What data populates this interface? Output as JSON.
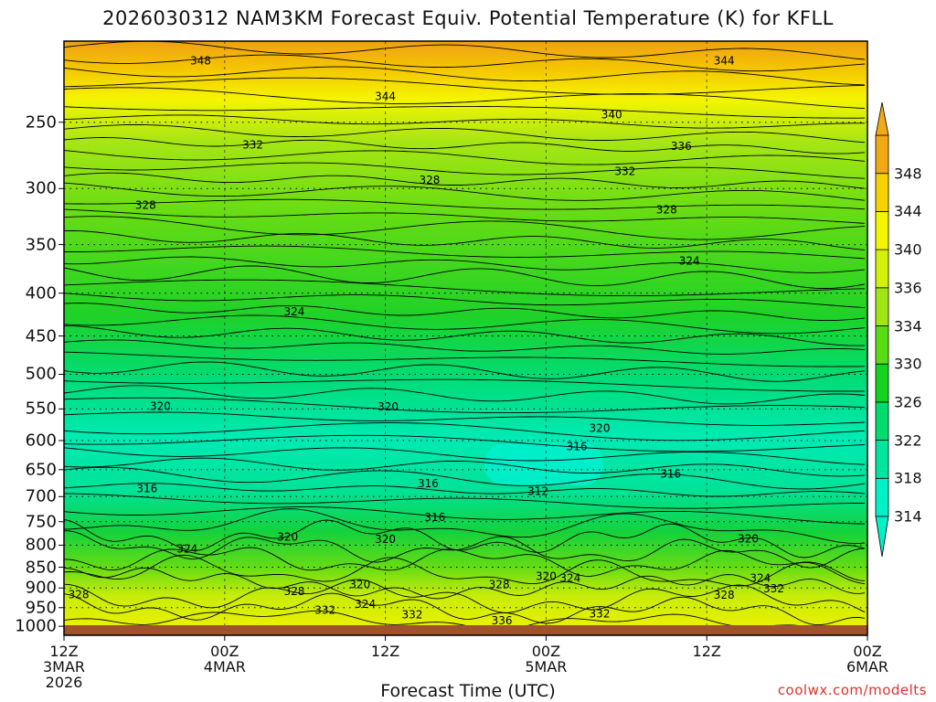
{
  "header": {
    "title": "2026030312 NAM3KM Forecast Equiv. Potential Temperature (K) for KFLL"
  },
  "footer": {
    "credit": "coolwx.com/modelts"
  },
  "chart_data": {
    "type": "heatmap",
    "title": "2026030312 NAM3KM Forecast Equiv. Potential Temperature (K) for KFLL",
    "xlabel": "Forecast Time (UTC)",
    "ylabel": "",
    "y_axis": {
      "ticks": [
        250,
        300,
        350,
        400,
        450,
        500,
        550,
        600,
        650,
        700,
        750,
        800,
        850,
        900,
        950,
        1000
      ],
      "scale": "log-pressure",
      "range": [
        1025,
        200
      ]
    },
    "x_axis": {
      "range_hours": [
        0,
        60
      ],
      "ticks": [
        {
          "hour": 0,
          "lines": [
            "12Z",
            "3MAR",
            "2026"
          ]
        },
        {
          "hour": 12,
          "lines": [
            "00Z",
            "4MAR"
          ]
        },
        {
          "hour": 24,
          "lines": [
            "12Z"
          ]
        },
        {
          "hour": 36,
          "lines": [
            "00Z",
            "5MAR"
          ]
        },
        {
          "hour": 48,
          "lines": [
            "12Z"
          ]
        },
        {
          "hour": 60,
          "lines": [
            "00Z",
            "6MAR"
          ]
        }
      ]
    },
    "colorbar": {
      "levels": [
        314,
        318,
        322,
        326,
        330,
        334,
        336,
        340,
        344,
        348
      ],
      "colors": [
        "#00f0c8",
        "#00e6a0",
        "#00dc6e",
        "#14d21e",
        "#5adc14",
        "#a0e614",
        "#d2f00a",
        "#f5f500",
        "#f5d200",
        "#f0aa14"
      ]
    },
    "contour_labels": [
      {
        "v": 348,
        "h": 10.2,
        "p": 211
      },
      {
        "v": 344,
        "h": 49.3,
        "p": 211
      },
      {
        "v": 344,
        "h": 24.0,
        "p": 233
      },
      {
        "v": 340,
        "h": 40.9,
        "p": 245
      },
      {
        "v": 336,
        "h": 46.1,
        "p": 267
      },
      {
        "v": 332,
        "h": 14.1,
        "p": 266
      },
      {
        "v": 332,
        "h": 41.9,
        "p": 286
      },
      {
        "v": 328,
        "h": 27.3,
        "p": 293
      },
      {
        "v": 328,
        "h": 6.1,
        "p": 314
      },
      {
        "v": 328,
        "h": 45.0,
        "p": 318
      },
      {
        "v": 324,
        "h": 46.7,
        "p": 366
      },
      {
        "v": 324,
        "h": 17.2,
        "p": 421
      },
      {
        "v": 320,
        "h": 7.2,
        "p": 546
      },
      {
        "v": 320,
        "h": 24.2,
        "p": 547
      },
      {
        "v": 320,
        "h": 40.0,
        "p": 580
      },
      {
        "v": 316,
        "h": 38.3,
        "p": 610
      },
      {
        "v": 316,
        "h": 45.3,
        "p": 658
      },
      {
        "v": 316,
        "h": 27.2,
        "p": 675
      },
      {
        "v": 316,
        "h": 6.2,
        "p": 685
      },
      {
        "v": 312,
        "h": 35.4,
        "p": 690
      },
      {
        "v": 316,
        "h": 27.7,
        "p": 741
      },
      {
        "v": 320,
        "h": 16.7,
        "p": 782
      },
      {
        "v": 320,
        "h": 24.0,
        "p": 787
      },
      {
        "v": 324,
        "h": 9.2,
        "p": 808
      },
      {
        "v": 320,
        "h": 51.1,
        "p": 786
      },
      {
        "v": 320,
        "h": 36.0,
        "p": 872
      },
      {
        "v": 324,
        "h": 37.8,
        "p": 876
      },
      {
        "v": 324,
        "h": 52.0,
        "p": 876
      },
      {
        "v": 320,
        "h": 22.1,
        "p": 891
      },
      {
        "v": 328,
        "h": 32.5,
        "p": 891
      },
      {
        "v": 332,
        "h": 53.0,
        "p": 902
      },
      {
        "v": 328,
        "h": 1.1,
        "p": 916
      },
      {
        "v": 328,
        "h": 17.2,
        "p": 908
      },
      {
        "v": 328,
        "h": 49.3,
        "p": 918
      },
      {
        "v": 324,
        "h": 22.5,
        "p": 941
      },
      {
        "v": 332,
        "h": 19.5,
        "p": 956
      },
      {
        "v": 332,
        "h": 26.0,
        "p": 969
      },
      {
        "v": 332,
        "h": 40.0,
        "p": 966
      },
      {
        "v": 336,
        "h": 32.7,
        "p": 985
      }
    ]
  }
}
